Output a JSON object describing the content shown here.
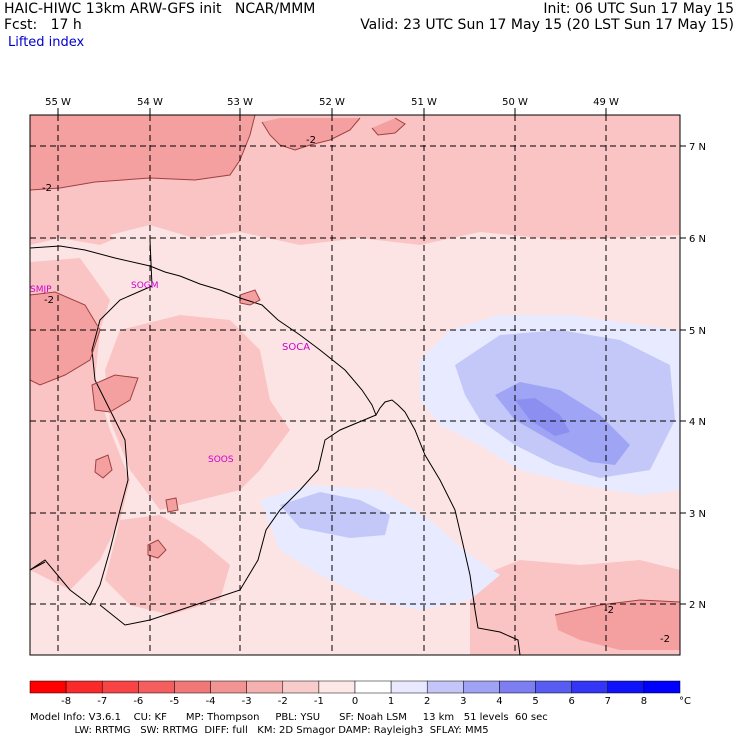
{
  "header": {
    "line1_left": "HAIC-HIWC 13km ARW-GFS init   NCAR/MMM",
    "line2_left": "Fcst:   17 h",
    "line3_left": "Lifted index",
    "line1_right": "Init: 06 UTC Sun 17 May 15",
    "line2_right": "Valid: 23 UTC Sun 17 May 15 (20 LST Sun 17 May 15)"
  },
  "map": {
    "lon_labels": [
      "55 W",
      "54 W",
      "53 W",
      "52 W",
      "51 W",
      "50 W",
      "49 W"
    ],
    "lat_labels": [
      "7 N",
      "6 N",
      "5 N",
      "4 N",
      "3 N",
      "2 N"
    ],
    "contour_labels": [
      "-2",
      "-2",
      "-2",
      "-2",
      "-2"
    ],
    "stations": [
      "SMJP",
      "SOGM",
      "SOCA",
      "SOOS"
    ],
    "colors": {
      "red_strong": "#f4a0a0",
      "red_medium": "#fbc4c4",
      "red_light": "#fde4e4",
      "blue_light": "#e8eaff",
      "blue_medium": "#c4c8f8",
      "blue_strong": "#8c8ff0",
      "station": "#cc00cc"
    }
  },
  "colorbar": {
    "ticks": [
      "-8",
      "-7",
      "-6",
      "-5",
      "-4",
      "-3",
      "-2",
      "-1",
      "0",
      "1",
      "2",
      "3",
      "4",
      "5",
      "6",
      "7",
      "8"
    ],
    "unit": "°C",
    "colors": [
      "#ff0000",
      "#fb2a2a",
      "#f84444",
      "#f45e5e",
      "#f27878",
      "#f39494",
      "#f5b0b0",
      "#f9cccc",
      "#fde8e8",
      "#ffffff",
      "#e8e8fe",
      "#c4c6fa",
      "#a0a2f6",
      "#7c7ef2",
      "#585cf2",
      "#3436f6",
      "#1012fa",
      "#0000ff"
    ]
  },
  "footer": {
    "line1": "Model Info: V3.6.1    CU: KF      MP: Thompson     PBL: YSU      SF: Noah LSM     13 km   51 levels  60 sec",
    "line2": "              LW: RRTMG   SW: RRTMG  DIFF: full   KM: 2D Smagor DAMP: Rayleigh3  SFLAY: MM5"
  }
}
